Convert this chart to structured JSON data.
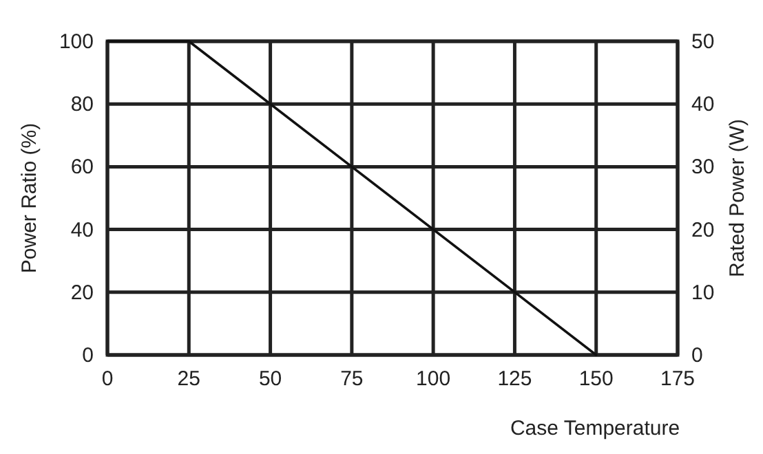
{
  "chart_data": {
    "type": "line",
    "xlabel": "Case Temperature",
    "ylabel": "Power Ratio (%)",
    "y2label": "Rated Power (W)",
    "x": [
      0,
      25,
      150
    ],
    "series": [
      {
        "color": "#111111",
        "values": [
          100,
          100,
          0
        ]
      }
    ],
    "xlim": [
      0,
      175
    ],
    "xticks": [
      0,
      25,
      50,
      75,
      100,
      125,
      150,
      175
    ],
    "ylim": [
      0,
      100
    ],
    "yticks": [
      0,
      20,
      40,
      60,
      80,
      100
    ],
    "y2lim": [
      0,
      50
    ],
    "y2ticks": [
      0,
      10,
      20,
      30,
      40,
      50
    ],
    "grid": true,
    "marker": "none",
    "line_style": "solid"
  }
}
